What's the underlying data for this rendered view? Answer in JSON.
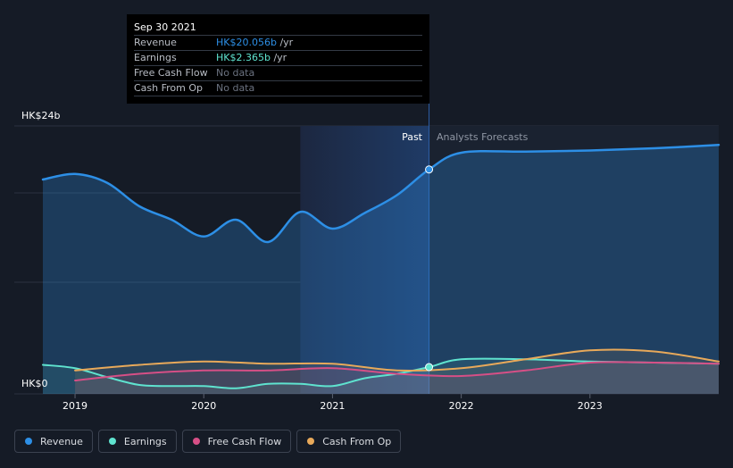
{
  "tooltip": {
    "date": "Sep 30 2021",
    "rows": [
      {
        "label": "Revenue",
        "value": "HK$20.056b",
        "unit": " /yr",
        "color": "#2d8fe6"
      },
      {
        "label": "Earnings",
        "value": "HK$2.365b",
        "unit": " /yr",
        "color": "#5fe3cf"
      },
      {
        "label": "Free Cash Flow",
        "value": "No data",
        "unit": "",
        "color": "#6b7280"
      },
      {
        "label": "Cash From Op",
        "value": "No data",
        "unit": "",
        "color": "#6b7280"
      }
    ]
  },
  "labels": {
    "past": "Past",
    "forecast": "Analysts Forecasts"
  },
  "legend": [
    {
      "label": "Revenue",
      "color": "#2d8fe6"
    },
    {
      "label": "Earnings",
      "color": "#5fe3cf"
    },
    {
      "label": "Free Cash Flow",
      "color": "#d64f86"
    },
    {
      "label": "Cash From Op",
      "color": "#e8a95a"
    }
  ],
  "chart_data": {
    "type": "line",
    "y_unit_labels": [
      "HK$0",
      "HK$24b"
    ],
    "ylim": [
      0,
      24
    ],
    "xlim": [
      2018.75,
      2024.0
    ],
    "x_ticks": [
      2019,
      2020,
      2021,
      2022,
      2023
    ],
    "x_tick_labels": [
      "2019",
      "2020",
      "2021",
      "2022",
      "2023"
    ],
    "divider_x": 2021.75,
    "highlight_start_x": 2020.75,
    "grid": true,
    "legend_position": "bottom-left",
    "series": [
      {
        "name": "Revenue",
        "color": "#2d8fe6",
        "x": [
          2018.75,
          2019.0,
          2019.25,
          2019.5,
          2019.75,
          2020.0,
          2020.25,
          2020.5,
          2020.75,
          2021.0,
          2021.25,
          2021.5,
          2021.75,
          2022.0,
          2022.5,
          2023.0,
          2023.5,
          2024.0
        ],
        "y": [
          19.2,
          19.7,
          18.9,
          16.8,
          15.6,
          14.1,
          15.6,
          13.6,
          16.3,
          14.8,
          16.2,
          17.8,
          20.1,
          21.6,
          21.7,
          21.8,
          22.0,
          22.3
        ]
      },
      {
        "name": "Earnings",
        "color": "#5fe3cf",
        "x": [
          2018.75,
          2019.0,
          2019.25,
          2019.5,
          2019.75,
          2020.0,
          2020.25,
          2020.5,
          2020.75,
          2021.0,
          2021.25,
          2021.5,
          2021.75,
          2022.0,
          2022.5,
          2023.0,
          2023.5,
          2024.0
        ],
        "y": [
          2.6,
          2.3,
          1.5,
          0.8,
          0.7,
          0.7,
          0.5,
          0.9,
          0.9,
          0.7,
          1.4,
          1.8,
          2.4,
          3.1,
          3.1,
          2.9,
          2.8,
          2.7
        ]
      },
      {
        "name": "Free Cash Flow",
        "color": "#d64f86",
        "x": [
          2019.0,
          2019.5,
          2020.0,
          2020.5,
          2021.0,
          2021.5,
          2022.0,
          2022.5,
          2023.0,
          2023.5,
          2024.0
        ],
        "y": [
          1.2,
          1.8,
          2.1,
          2.1,
          2.3,
          1.8,
          1.6,
          2.1,
          2.8,
          2.8,
          2.7
        ]
      },
      {
        "name": "Cash From Op",
        "color": "#e8a95a",
        "x": [
          2019.0,
          2019.5,
          2020.0,
          2020.5,
          2021.0,
          2021.5,
          2022.0,
          2022.5,
          2023.0,
          2023.5,
          2024.0
        ],
        "y": [
          2.1,
          2.6,
          2.9,
          2.7,
          2.7,
          2.1,
          2.3,
          3.1,
          3.9,
          3.8,
          2.9
        ]
      }
    ]
  }
}
